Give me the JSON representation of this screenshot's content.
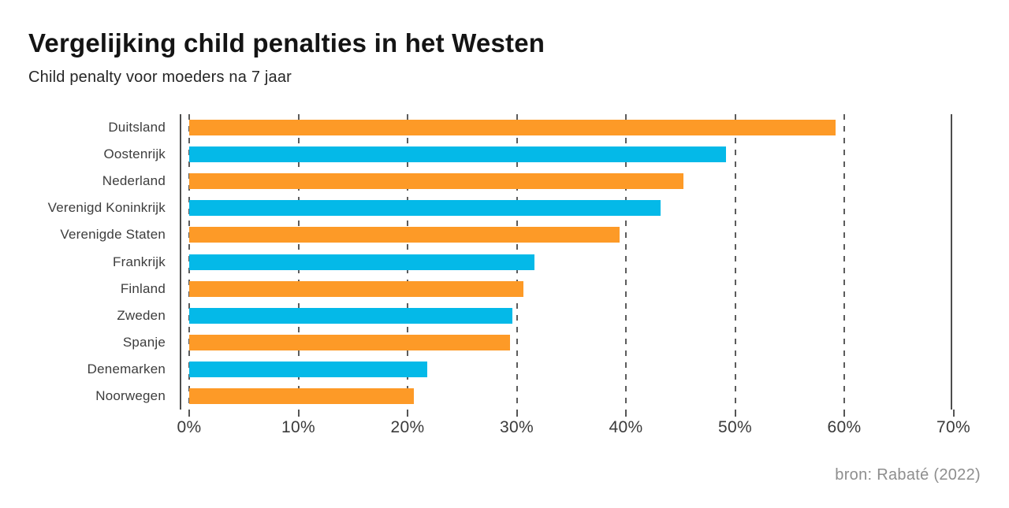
{
  "header": {
    "title": "Vergelijking child penalties in het Westen",
    "subtitle": "Child penalty voor moeders na 7 jaar"
  },
  "footer": {
    "source": "bron: Rabaté (2022)"
  },
  "colors": {
    "orange": "#fd9a27",
    "blue": "#04b9e8",
    "axis_line": "#4d4d4d",
    "gridline": "#5c5c5c",
    "category_label": "#3d3d3d",
    "tick_label": "#3a3a3a",
    "title_text": "#141414",
    "source_text": "#8e8e8e"
  },
  "chart_data": {
    "type": "bar",
    "orientation": "horizontal",
    "title": "Vergelijking child penalties in het Westen",
    "subtitle": "Child penalty voor moeders na 7 jaar",
    "source": "bron: Rabaté (2022)",
    "categories": [
      "Duitsland",
      "Oostenrijk",
      "Nederland",
      "Verenigd Koninkrijk",
      "Verenigde Staten",
      "Frankrijk",
      "Finland",
      "Zweden",
      "Spanje",
      "Denemarken",
      "Noorwegen"
    ],
    "values": [
      59.2,
      49.2,
      45.3,
      43.2,
      39.4,
      31.6,
      30.6,
      29.6,
      29.4,
      21.8,
      20.6
    ],
    "value_unit": "%",
    "bar_color_names": [
      "orange",
      "blue",
      "orange",
      "blue",
      "orange",
      "blue",
      "orange",
      "blue",
      "orange",
      "blue",
      "orange"
    ],
    "x_tick_labels": [
      "0%",
      "10%",
      "20%",
      "30%",
      "40%",
      "50%",
      "60%",
      "70%"
    ],
    "x_tick_values": [
      0,
      10,
      20,
      30,
      40,
      50,
      60,
      70
    ],
    "xlim": [
      0,
      70
    ],
    "grid": "dashed-vertical",
    "legend": "none"
  }
}
